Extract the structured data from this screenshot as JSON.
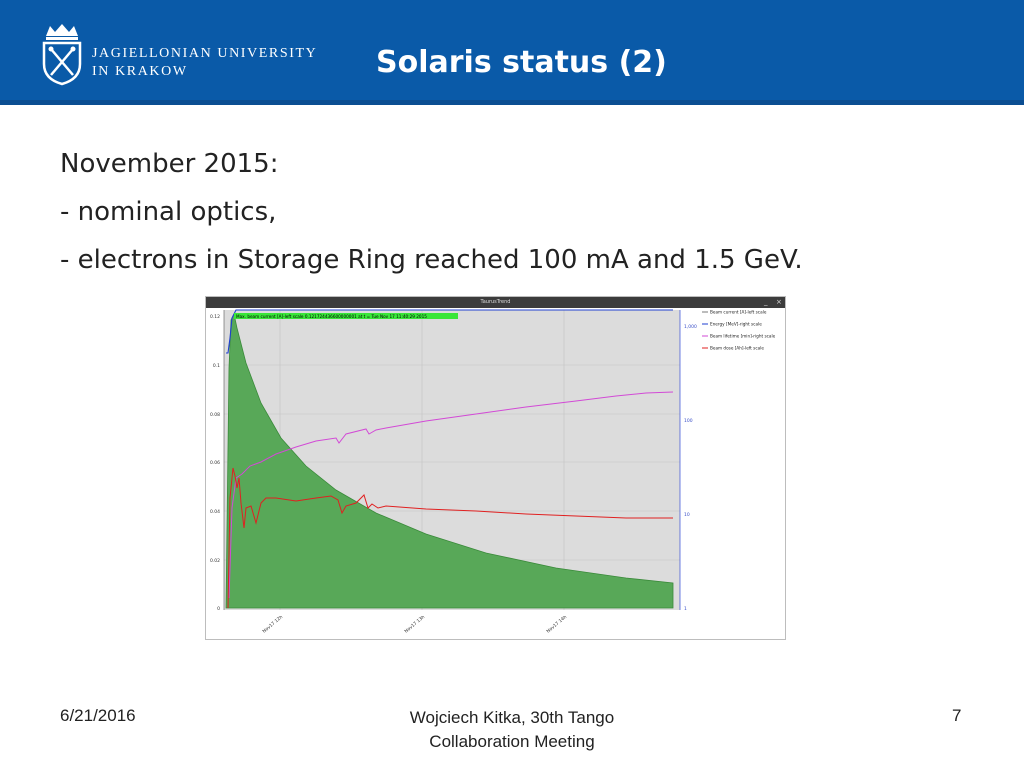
{
  "header": {
    "university_line1": "JAGIELLONIAN UNIVERSITY",
    "university_line2": "IN KRAKOW",
    "title": "Solaris status (2)",
    "colors": {
      "band": "#0a5aa8",
      "text": "#ffffff"
    },
    "logo_icon": "jagiellonian-crest-icon"
  },
  "body": {
    "lines": [
      "November 2015:",
      "- nominal optics,",
      "- electrons in Storage Ring reached 100 mA and 1.5 GeV."
    ]
  },
  "screenshot": {
    "window_title": "TaurusTrend",
    "annotation": "Max. beam current [A]-left scale 0.121724436600000001 at t = Tue Nov 17 11:40:29 2015",
    "legend": [
      "Beam current [A]-left scale",
      "Energy [MeV]-right scale",
      "Beam lifetime [min]-right scale",
      "Beam dose [Ah]-left scale"
    ],
    "legend_colors": [
      "#7a7a7a",
      "#1f3fd0",
      "#d24ad6",
      "#e02020"
    ],
    "left_ticks": [
      "0.12",
      "0.1",
      "0.08",
      "0.06",
      "0.04",
      "0.02",
      "0"
    ],
    "right_ticks": [
      "1,000",
      "100",
      "10",
      "1"
    ],
    "x_ticks": [
      "Nov17 12h",
      "Nov17 13h",
      "Nov17 14h"
    ]
  },
  "footer": {
    "date": "6/21/2016",
    "presenter_line1": "Wojciech Kitka, 30th Tango",
    "presenter_line2": "Collaboration Meeting",
    "page": "7"
  }
}
